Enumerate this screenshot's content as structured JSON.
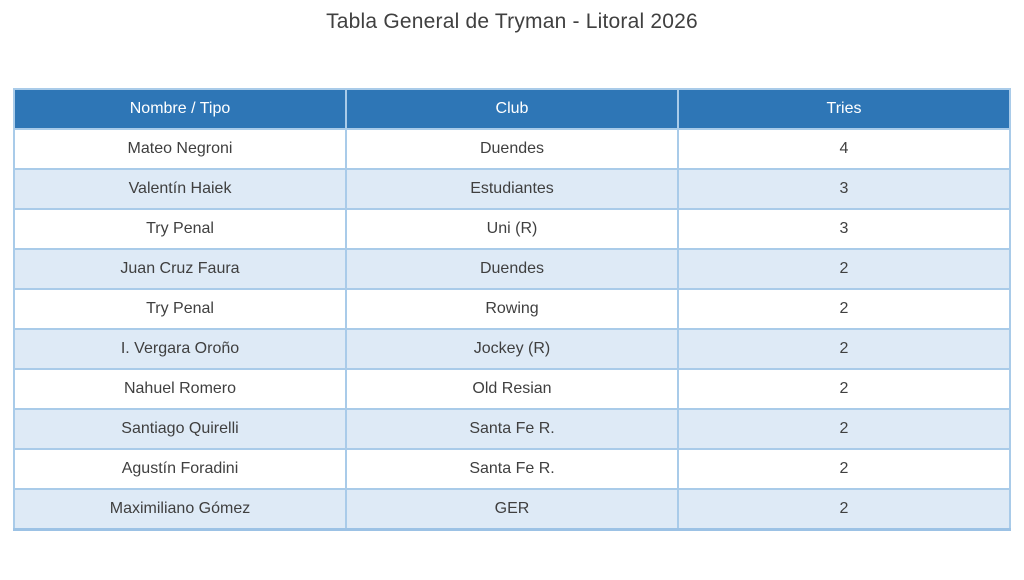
{
  "title": "Tabla General de Tryman - Litoral 2026",
  "table": {
    "columns": [
      "Nombre / Tipo",
      "Club",
      "Tries"
    ],
    "rows": [
      [
        "Mateo Negroni",
        "Duendes",
        "4"
      ],
      [
        "Valentín Haiek",
        "Estudiantes",
        "3"
      ],
      [
        "Try Penal",
        "Uni (R)",
        "3"
      ],
      [
        "Juan Cruz Faura",
        "Duendes",
        "2"
      ],
      [
        "Try Penal",
        "Rowing",
        "2"
      ],
      [
        "I. Vergara Oroño",
        "Jockey (R)",
        "2"
      ],
      [
        "Nahuel Romero",
        "Old Resian",
        "2"
      ],
      [
        "Santiago Quirelli",
        "Santa Fe R.",
        "2"
      ],
      [
        "Agustín Foradini",
        "Santa Fe R.",
        "2"
      ],
      [
        "Maximiliano Gómez",
        "GER",
        "2"
      ]
    ]
  },
  "colors": {
    "header_bg": "#2E76B6",
    "header_text": "#FFFFFF",
    "row_bg": "#FFFFFF",
    "row_alt_bg": "#DEEAF6",
    "grid_border": "#A9CBE9",
    "bottom_border": "#9CC2E5",
    "body_text": "#3F3F3F",
    "title_text": "#404040"
  },
  "chart_data": {
    "type": "table",
    "title": "Tabla General de Tryman - Litoral 2026",
    "columns": [
      "Nombre / Tipo",
      "Club",
      "Tries"
    ],
    "rows": [
      {
        "nombre_tipo": "Mateo Negroni",
        "club": "Duendes",
        "tries": 4
      },
      {
        "nombre_tipo": "Valentín Haiek",
        "club": "Estudiantes",
        "tries": 3
      },
      {
        "nombre_tipo": "Try Penal",
        "club": "Uni (R)",
        "tries": 3
      },
      {
        "nombre_tipo": "Juan Cruz Faura",
        "club": "Duendes",
        "tries": 2
      },
      {
        "nombre_tipo": "Try Penal",
        "club": "Rowing",
        "tries": 2
      },
      {
        "nombre_tipo": "I. Vergara Oroño",
        "club": "Jockey (R)",
        "tries": 2
      },
      {
        "nombre_tipo": "Nahuel Romero",
        "club": "Old Resian",
        "tries": 2
      },
      {
        "nombre_tipo": "Santiago Quirelli",
        "club": "Santa Fe R.",
        "tries": 2
      },
      {
        "nombre_tipo": "Agustín Foradini",
        "club": "Santa Fe R.",
        "tries": 2
      },
      {
        "nombre_tipo": "Maximiliano Gómez",
        "club": "GER",
        "tries": 2
      }
    ],
    "layout": {
      "header_row": true,
      "banded_rows": true,
      "column_alignment": [
        "center",
        "center",
        "center"
      ]
    }
  }
}
